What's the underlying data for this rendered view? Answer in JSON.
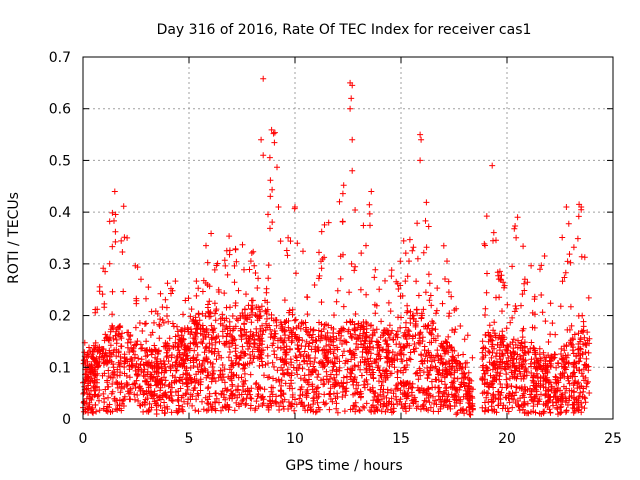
{
  "chart_data": {
    "type": "scatter",
    "title": "Day 316 of 2016, Rate Of TEC Index for receiver cas1",
    "xlabel": "GPS time / hours",
    "ylabel": "ROTI / TECUs",
    "xlim": [
      0,
      25
    ],
    "ylim": [
      0,
      0.7
    ],
    "grid": true,
    "marker": "+",
    "color": "#ff0000",
    "x_ticks": [
      0,
      5,
      10,
      15,
      20,
      25
    ],
    "x_tick_labels": [
      "0",
      "5",
      "10",
      "15",
      "20",
      "25"
    ],
    "y_ticks": [
      0,
      0.1,
      0.2,
      0.3,
      0.4,
      0.5,
      0.6,
      0.7
    ],
    "y_tick_labels": [
      "0",
      "0.1",
      "0.2",
      "0.3",
      "0.4",
      "0.5",
      "0.6",
      "0.7"
    ],
    "gaps_hours": [
      [
        18.4,
        18.8
      ],
      [
        23.9,
        25
      ]
    ],
    "envelope": {
      "x": [
        0.0,
        0.5,
        1.0,
        1.5,
        2.0,
        2.5,
        3.0,
        3.5,
        4.0,
        4.5,
        5.0,
        5.5,
        6.0,
        6.5,
        7.0,
        7.5,
        8.0,
        8.5,
        9.0,
        9.5,
        10.0,
        10.5,
        11.0,
        11.5,
        12.0,
        12.5,
        13.0,
        13.5,
        14.0,
        14.5,
        15.0,
        15.5,
        16.0,
        16.5,
        17.0,
        17.5,
        18.0,
        18.3,
        18.8,
        19.0,
        19.5,
        20.0,
        20.5,
        21.0,
        21.5,
        22.0,
        22.5,
        23.0,
        23.5,
        23.8
      ],
      "median": [
        0.07,
        0.08,
        0.1,
        0.11,
        0.1,
        0.09,
        0.08,
        0.08,
        0.09,
        0.1,
        0.11,
        0.12,
        0.13,
        0.12,
        0.11,
        0.12,
        0.14,
        0.13,
        0.12,
        0.11,
        0.12,
        0.11,
        0.1,
        0.11,
        0.1,
        0.11,
        0.11,
        0.11,
        0.1,
        0.1,
        0.11,
        0.13,
        0.12,
        0.11,
        0.09,
        0.08,
        0.06,
        0.04,
        0.07,
        0.1,
        0.1,
        0.09,
        0.09,
        0.08,
        0.08,
        0.07,
        0.08,
        0.09,
        0.11,
        0.1
      ],
      "max": [
        0.16,
        0.2,
        0.35,
        0.44,
        0.41,
        0.3,
        0.28,
        0.25,
        0.28,
        0.27,
        0.29,
        0.31,
        0.37,
        0.28,
        0.38,
        0.35,
        0.33,
        0.3,
        0.66,
        0.32,
        0.41,
        0.33,
        0.35,
        0.43,
        0.3,
        0.65,
        0.35,
        0.44,
        0.27,
        0.33,
        0.36,
        0.35,
        0.55,
        0.3,
        0.34,
        0.26,
        0.21,
        0.12,
        0.38,
        0.49,
        0.37,
        0.33,
        0.4,
        0.31,
        0.29,
        0.36,
        0.34,
        0.41,
        0.41,
        0.25
      ]
    },
    "notable_points": [
      {
        "x": 8.5,
        "y": 0.658
      },
      {
        "x": 8.4,
        "y": 0.54
      },
      {
        "x": 8.5,
        "y": 0.51
      },
      {
        "x": 12.6,
        "y": 0.65
      },
      {
        "x": 12.7,
        "y": 0.645
      },
      {
        "x": 12.65,
        "y": 0.62
      },
      {
        "x": 12.6,
        "y": 0.6
      },
      {
        "x": 12.7,
        "y": 0.54
      },
      {
        "x": 12.7,
        "y": 0.48
      },
      {
        "x": 15.9,
        "y": 0.55
      },
      {
        "x": 15.95,
        "y": 0.54
      },
      {
        "x": 15.9,
        "y": 0.5
      },
      {
        "x": 19.3,
        "y": 0.49
      },
      {
        "x": 1.5,
        "y": 0.44
      },
      {
        "x": 13.6,
        "y": 0.44
      },
      {
        "x": 23.4,
        "y": 0.415
      },
      {
        "x": 23.5,
        "y": 0.41
      },
      {
        "x": 22.8,
        "y": 0.41
      },
      {
        "x": 12.1,
        "y": 0.42
      },
      {
        "x": 10.0,
        "y": 0.41
      },
      {
        "x": 20.5,
        "y": 0.39
      }
    ]
  }
}
